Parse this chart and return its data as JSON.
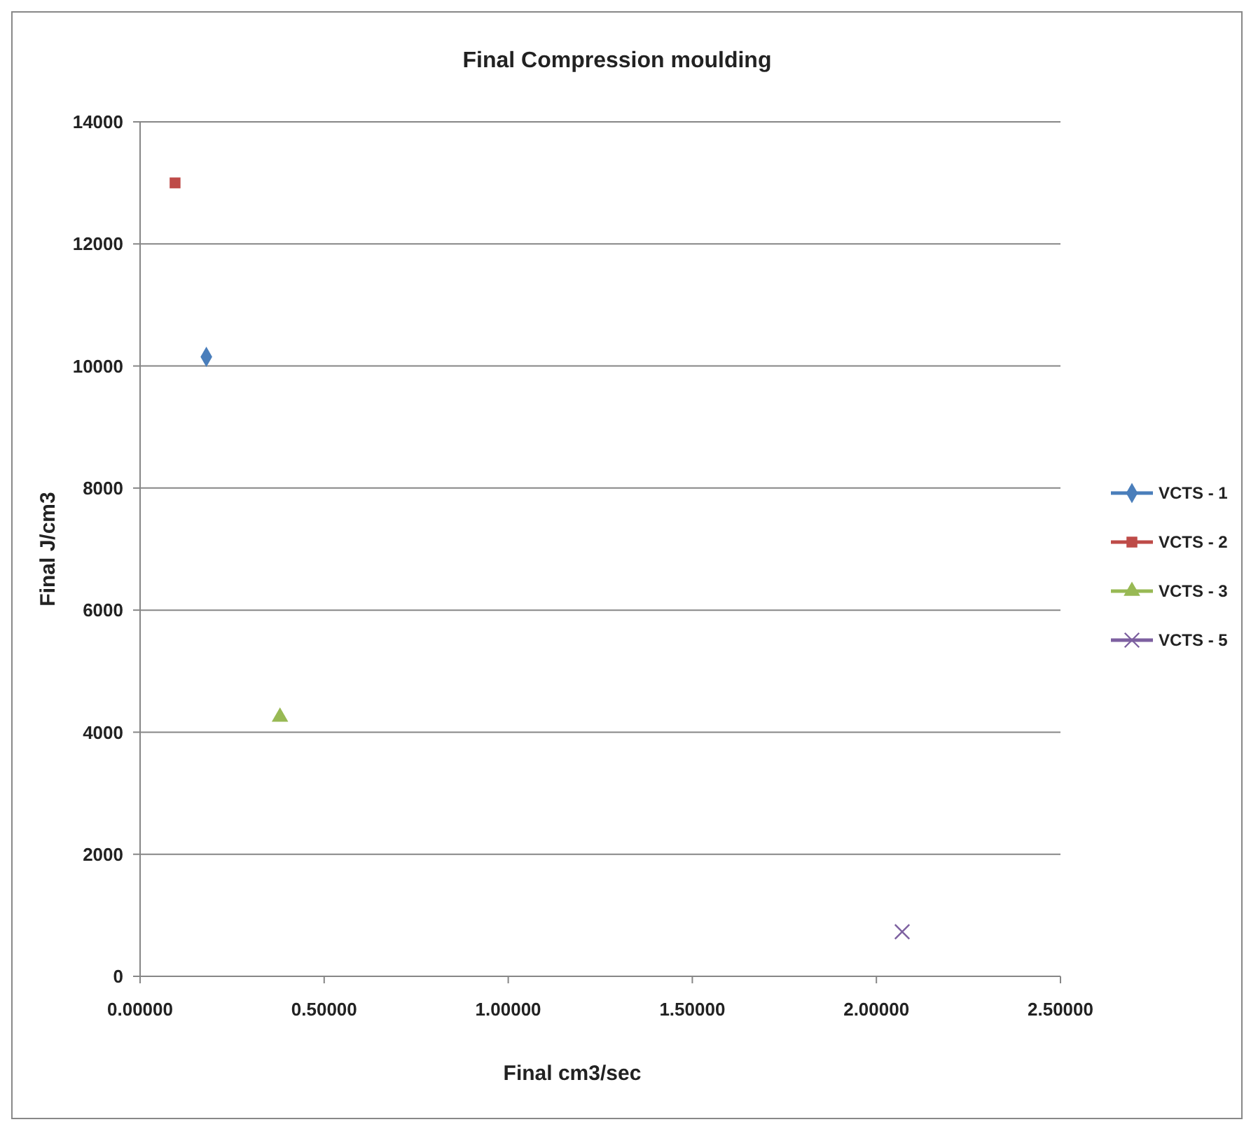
{
  "chart_data": {
    "type": "scatter",
    "title": "Final Compression moulding",
    "xlabel": "Final cm3/sec",
    "ylabel": "Final J/cm3",
    "xlim": [
      0,
      2.5
    ],
    "xticks": [
      {
        "value": 0,
        "label": "0.00000"
      },
      {
        "value": 0.5,
        "label": "0.50000"
      },
      {
        "value": 1,
        "label": "1.00000"
      },
      {
        "value": 1.5,
        "label": "1.50000"
      },
      {
        "value": 2,
        "label": "2.00000"
      },
      {
        "value": 2.5,
        "label": "2.50000"
      }
    ],
    "ylim": [
      0,
      14000
    ],
    "yticks": [
      0,
      2000,
      4000,
      6000,
      8000,
      10000,
      12000,
      14000
    ],
    "grid": "y",
    "legend": "right",
    "series": [
      {
        "name": "VCTS - 1",
        "color": "#4a7ebb",
        "marker": "diamond",
        "x": [
          0.18
        ],
        "values": [
          10150
        ]
      },
      {
        "name": "VCTS - 2",
        "color": "#be4b48",
        "marker": "square",
        "x": [
          0.095
        ],
        "values": [
          13000
        ]
      },
      {
        "name": "VCTS - 3",
        "color": "#98b954",
        "marker": "triangle",
        "x": [
          0.38
        ],
        "values": [
          4250
        ]
      },
      {
        "name": "VCTS - 5",
        "color": "#7d60a0",
        "marker": "cross",
        "x": [
          2.07
        ],
        "values": [
          730
        ]
      }
    ]
  }
}
